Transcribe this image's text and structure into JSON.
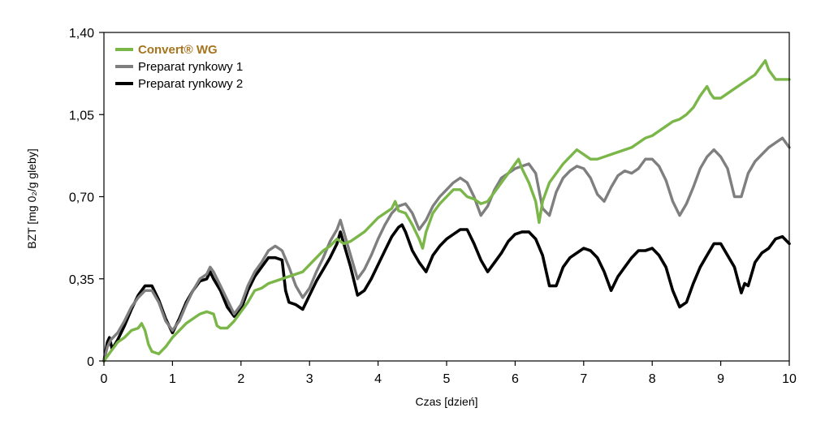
{
  "chart_data": {
    "type": "line",
    "title": "",
    "xlabel": "Czas [dzień]",
    "ylabel": "BZT [mg 0₂/g gleby]",
    "xlim": [
      0,
      10
    ],
    "ylim": [
      0,
      1.4
    ],
    "x_ticks": [
      "0",
      "1",
      "2",
      "3",
      "4",
      "5",
      "6",
      "7",
      "8",
      "9",
      "10"
    ],
    "y_ticks": [
      "0",
      "0,35",
      "0,70",
      "1,05",
      "1,40"
    ],
    "grid": false,
    "legend_position": "top-left",
    "series": [
      {
        "name": "Convert® WG",
        "color": "#7ab648",
        "legend_color": "#a6741f",
        "points": [
          [
            0,
            0
          ],
          [
            0.05,
            0.02
          ],
          [
            0.1,
            0.04
          ],
          [
            0.15,
            0.06
          ],
          [
            0.2,
            0.08
          ],
          [
            0.3,
            0.1
          ],
          [
            0.4,
            0.13
          ],
          [
            0.5,
            0.14
          ],
          [
            0.55,
            0.16
          ],
          [
            0.6,
            0.13
          ],
          [
            0.65,
            0.07
          ],
          [
            0.7,
            0.04
          ],
          [
            0.8,
            0.03
          ],
          [
            0.9,
            0.06
          ],
          [
            1.0,
            0.1
          ],
          [
            1.1,
            0.13
          ],
          [
            1.2,
            0.16
          ],
          [
            1.3,
            0.18
          ],
          [
            1.4,
            0.2
          ],
          [
            1.5,
            0.21
          ],
          [
            1.6,
            0.2
          ],
          [
            1.65,
            0.15
          ],
          [
            1.7,
            0.14
          ],
          [
            1.8,
            0.14
          ],
          [
            1.9,
            0.17
          ],
          [
            2.0,
            0.21
          ],
          [
            2.1,
            0.25
          ],
          [
            2.2,
            0.3
          ],
          [
            2.3,
            0.31
          ],
          [
            2.4,
            0.33
          ],
          [
            2.5,
            0.34
          ],
          [
            2.6,
            0.35
          ],
          [
            2.7,
            0.36
          ],
          [
            2.8,
            0.37
          ],
          [
            2.9,
            0.38
          ],
          [
            3.0,
            0.41
          ],
          [
            3.1,
            0.44
          ],
          [
            3.2,
            0.47
          ],
          [
            3.3,
            0.49
          ],
          [
            3.4,
            0.52
          ],
          [
            3.5,
            0.5
          ],
          [
            3.6,
            0.51
          ],
          [
            3.7,
            0.53
          ],
          [
            3.8,
            0.55
          ],
          [
            3.9,
            0.58
          ],
          [
            4.0,
            0.61
          ],
          [
            4.1,
            0.63
          ],
          [
            4.2,
            0.65
          ],
          [
            4.25,
            0.68
          ],
          [
            4.3,
            0.64
          ],
          [
            4.4,
            0.63
          ],
          [
            4.5,
            0.58
          ],
          [
            4.6,
            0.52
          ],
          [
            4.65,
            0.48
          ],
          [
            4.7,
            0.55
          ],
          [
            4.8,
            0.63
          ],
          [
            4.9,
            0.67
          ],
          [
            5.0,
            0.7
          ],
          [
            5.1,
            0.73
          ],
          [
            5.2,
            0.73
          ],
          [
            5.3,
            0.7
          ],
          [
            5.4,
            0.69
          ],
          [
            5.5,
            0.67
          ],
          [
            5.6,
            0.68
          ],
          [
            5.7,
            0.72
          ],
          [
            5.8,
            0.76
          ],
          [
            5.9,
            0.8
          ],
          [
            6.0,
            0.84
          ],
          [
            6.05,
            0.86
          ],
          [
            6.1,
            0.82
          ],
          [
            6.2,
            0.76
          ],
          [
            6.3,
            0.68
          ],
          [
            6.35,
            0.59
          ],
          [
            6.4,
            0.68
          ],
          [
            6.5,
            0.76
          ],
          [
            6.6,
            0.8
          ],
          [
            6.7,
            0.84
          ],
          [
            6.8,
            0.87
          ],
          [
            6.9,
            0.9
          ],
          [
            7.0,
            0.88
          ],
          [
            7.1,
            0.86
          ],
          [
            7.2,
            0.86
          ],
          [
            7.3,
            0.87
          ],
          [
            7.4,
            0.88
          ],
          [
            7.5,
            0.89
          ],
          [
            7.6,
            0.9
          ],
          [
            7.7,
            0.91
          ],
          [
            7.8,
            0.93
          ],
          [
            7.9,
            0.95
          ],
          [
            8.0,
            0.96
          ],
          [
            8.1,
            0.98
          ],
          [
            8.2,
            1.0
          ],
          [
            8.3,
            1.02
          ],
          [
            8.4,
            1.03
          ],
          [
            8.5,
            1.05
          ],
          [
            8.6,
            1.08
          ],
          [
            8.7,
            1.13
          ],
          [
            8.8,
            1.17
          ],
          [
            8.85,
            1.14
          ],
          [
            8.9,
            1.12
          ],
          [
            9.0,
            1.12
          ],
          [
            9.1,
            1.14
          ],
          [
            9.2,
            1.16
          ],
          [
            9.3,
            1.18
          ],
          [
            9.4,
            1.2
          ],
          [
            9.5,
            1.22
          ],
          [
            9.6,
            1.26
          ],
          [
            9.65,
            1.28
          ],
          [
            9.7,
            1.24
          ],
          [
            9.8,
            1.2
          ],
          [
            9.9,
            1.2
          ],
          [
            10.0,
            1.2
          ]
        ]
      },
      {
        "name": "Preparat rynkowy 1",
        "color": "#7f7f7f",
        "points": [
          [
            0,
            0
          ],
          [
            0.05,
            0.06
          ],
          [
            0.1,
            0.09
          ],
          [
            0.2,
            0.12
          ],
          [
            0.3,
            0.17
          ],
          [
            0.4,
            0.23
          ],
          [
            0.5,
            0.27
          ],
          [
            0.6,
            0.3
          ],
          [
            0.7,
            0.3
          ],
          [
            0.8,
            0.25
          ],
          [
            0.9,
            0.17
          ],
          [
            1.0,
            0.13
          ],
          [
            1.1,
            0.17
          ],
          [
            1.2,
            0.24
          ],
          [
            1.3,
            0.3
          ],
          [
            1.4,
            0.35
          ],
          [
            1.5,
            0.37
          ],
          [
            1.55,
            0.4
          ],
          [
            1.6,
            0.38
          ],
          [
            1.7,
            0.32
          ],
          [
            1.8,
            0.26
          ],
          [
            1.9,
            0.2
          ],
          [
            2.0,
            0.24
          ],
          [
            2.1,
            0.32
          ],
          [
            2.2,
            0.38
          ],
          [
            2.3,
            0.42
          ],
          [
            2.4,
            0.47
          ],
          [
            2.5,
            0.49
          ],
          [
            2.6,
            0.47
          ],
          [
            2.7,
            0.4
          ],
          [
            2.8,
            0.32
          ],
          [
            2.9,
            0.27
          ],
          [
            3.0,
            0.31
          ],
          [
            3.1,
            0.38
          ],
          [
            3.2,
            0.44
          ],
          [
            3.3,
            0.51
          ],
          [
            3.4,
            0.56
          ],
          [
            3.45,
            0.6
          ],
          [
            3.5,
            0.55
          ],
          [
            3.6,
            0.45
          ],
          [
            3.7,
            0.35
          ],
          [
            3.8,
            0.39
          ],
          [
            3.9,
            0.45
          ],
          [
            4.0,
            0.52
          ],
          [
            4.1,
            0.58
          ],
          [
            4.2,
            0.63
          ],
          [
            4.3,
            0.66
          ],
          [
            4.4,
            0.67
          ],
          [
            4.5,
            0.63
          ],
          [
            4.6,
            0.56
          ],
          [
            4.7,
            0.6
          ],
          [
            4.8,
            0.66
          ],
          [
            4.9,
            0.7
          ],
          [
            5.0,
            0.73
          ],
          [
            5.1,
            0.76
          ],
          [
            5.2,
            0.78
          ],
          [
            5.3,
            0.76
          ],
          [
            5.4,
            0.7
          ],
          [
            5.5,
            0.62
          ],
          [
            5.6,
            0.66
          ],
          [
            5.7,
            0.73
          ],
          [
            5.8,
            0.78
          ],
          [
            5.9,
            0.8
          ],
          [
            6.0,
            0.82
          ],
          [
            6.1,
            0.83
          ],
          [
            6.2,
            0.84
          ],
          [
            6.3,
            0.8
          ],
          [
            6.4,
            0.65
          ],
          [
            6.5,
            0.62
          ],
          [
            6.6,
            0.72
          ],
          [
            6.7,
            0.78
          ],
          [
            6.8,
            0.81
          ],
          [
            6.9,
            0.83
          ],
          [
            7.0,
            0.82
          ],
          [
            7.1,
            0.78
          ],
          [
            7.2,
            0.71
          ],
          [
            7.3,
            0.68
          ],
          [
            7.4,
            0.74
          ],
          [
            7.5,
            0.79
          ],
          [
            7.6,
            0.81
          ],
          [
            7.7,
            0.8
          ],
          [
            7.8,
            0.82
          ],
          [
            7.9,
            0.86
          ],
          [
            8.0,
            0.86
          ],
          [
            8.1,
            0.83
          ],
          [
            8.2,
            0.77
          ],
          [
            8.3,
            0.68
          ],
          [
            8.4,
            0.62
          ],
          [
            8.5,
            0.67
          ],
          [
            8.6,
            0.74
          ],
          [
            8.7,
            0.82
          ],
          [
            8.8,
            0.87
          ],
          [
            8.9,
            0.9
          ],
          [
            9.0,
            0.87
          ],
          [
            9.1,
            0.82
          ],
          [
            9.2,
            0.7
          ],
          [
            9.3,
            0.7
          ],
          [
            9.4,
            0.8
          ],
          [
            9.5,
            0.85
          ],
          [
            9.6,
            0.88
          ],
          [
            9.7,
            0.91
          ],
          [
            9.8,
            0.93
          ],
          [
            9.9,
            0.95
          ],
          [
            10.0,
            0.91
          ]
        ]
      },
      {
        "name": "Preparat rynkowy 2",
        "color": "#000000",
        "points": [
          [
            0,
            0
          ],
          [
            0.05,
            0.08
          ],
          [
            0.08,
            0.1
          ],
          [
            0.12,
            0.05
          ],
          [
            0.2,
            0.09
          ],
          [
            0.3,
            0.15
          ],
          [
            0.4,
            0.22
          ],
          [
            0.5,
            0.28
          ],
          [
            0.6,
            0.32
          ],
          [
            0.7,
            0.32
          ],
          [
            0.8,
            0.26
          ],
          [
            0.9,
            0.18
          ],
          [
            1.0,
            0.12
          ],
          [
            1.1,
            0.18
          ],
          [
            1.2,
            0.25
          ],
          [
            1.3,
            0.3
          ],
          [
            1.4,
            0.34
          ],
          [
            1.5,
            0.35
          ],
          [
            1.55,
            0.38
          ],
          [
            1.6,
            0.35
          ],
          [
            1.7,
            0.3
          ],
          [
            1.8,
            0.23
          ],
          [
            1.9,
            0.19
          ],
          [
            2.0,
            0.22
          ],
          [
            2.1,
            0.3
          ],
          [
            2.2,
            0.36
          ],
          [
            2.3,
            0.4
          ],
          [
            2.4,
            0.44
          ],
          [
            2.5,
            0.44
          ],
          [
            2.6,
            0.43
          ],
          [
            2.65,
            0.3
          ],
          [
            2.7,
            0.25
          ],
          [
            2.8,
            0.24
          ],
          [
            2.9,
            0.22
          ],
          [
            3.0,
            0.28
          ],
          [
            3.1,
            0.34
          ],
          [
            3.2,
            0.39
          ],
          [
            3.3,
            0.44
          ],
          [
            3.4,
            0.5
          ],
          [
            3.45,
            0.55
          ],
          [
            3.5,
            0.5
          ],
          [
            3.6,
            0.4
          ],
          [
            3.7,
            0.28
          ],
          [
            3.8,
            0.3
          ],
          [
            3.9,
            0.35
          ],
          [
            4.0,
            0.41
          ],
          [
            4.1,
            0.47
          ],
          [
            4.2,
            0.53
          ],
          [
            4.3,
            0.57
          ],
          [
            4.35,
            0.58
          ],
          [
            4.4,
            0.55
          ],
          [
            4.5,
            0.47
          ],
          [
            4.6,
            0.42
          ],
          [
            4.7,
            0.38
          ],
          [
            4.8,
            0.45
          ],
          [
            4.9,
            0.49
          ],
          [
            5.0,
            0.52
          ],
          [
            5.1,
            0.54
          ],
          [
            5.2,
            0.56
          ],
          [
            5.3,
            0.56
          ],
          [
            5.4,
            0.5
          ],
          [
            5.5,
            0.43
          ],
          [
            5.6,
            0.38
          ],
          [
            5.7,
            0.42
          ],
          [
            5.8,
            0.46
          ],
          [
            5.9,
            0.51
          ],
          [
            6.0,
            0.54
          ],
          [
            6.1,
            0.55
          ],
          [
            6.2,
            0.55
          ],
          [
            6.3,
            0.52
          ],
          [
            6.4,
            0.45
          ],
          [
            6.5,
            0.32
          ],
          [
            6.6,
            0.32
          ],
          [
            6.7,
            0.4
          ],
          [
            6.8,
            0.44
          ],
          [
            6.9,
            0.46
          ],
          [
            7.0,
            0.48
          ],
          [
            7.1,
            0.47
          ],
          [
            7.2,
            0.44
          ],
          [
            7.3,
            0.38
          ],
          [
            7.4,
            0.3
          ],
          [
            7.5,
            0.36
          ],
          [
            7.6,
            0.4
          ],
          [
            7.7,
            0.44
          ],
          [
            7.8,
            0.47
          ],
          [
            7.9,
            0.47
          ],
          [
            8.0,
            0.48
          ],
          [
            8.1,
            0.45
          ],
          [
            8.2,
            0.4
          ],
          [
            8.3,
            0.3
          ],
          [
            8.4,
            0.23
          ],
          [
            8.5,
            0.25
          ],
          [
            8.6,
            0.33
          ],
          [
            8.7,
            0.4
          ],
          [
            8.8,
            0.45
          ],
          [
            8.9,
            0.5
          ],
          [
            9.0,
            0.5
          ],
          [
            9.1,
            0.45
          ],
          [
            9.2,
            0.4
          ],
          [
            9.3,
            0.29
          ],
          [
            9.35,
            0.33
          ],
          [
            9.4,
            0.32
          ],
          [
            9.5,
            0.42
          ],
          [
            9.6,
            0.46
          ],
          [
            9.7,
            0.48
          ],
          [
            9.8,
            0.52
          ],
          [
            9.9,
            0.53
          ],
          [
            10.0,
            0.5
          ]
        ]
      }
    ]
  }
}
